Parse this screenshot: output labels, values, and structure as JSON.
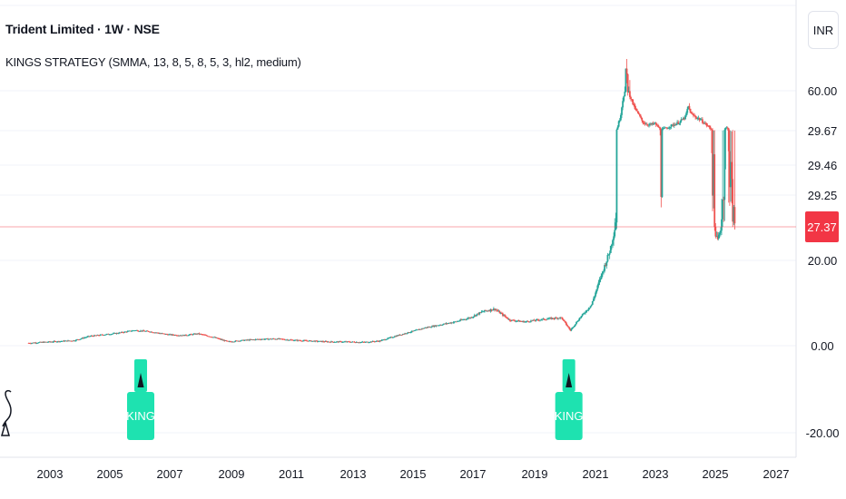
{
  "header": {
    "title": "Trident Limited · 1W · NSE",
    "indicator": "KINGS STRATEGY (SMMA, 13, 8, 5, 8, 5, 3, hl2, medium)",
    "currency": "INR"
  },
  "colors": {
    "up": "#26a69a",
    "down": "#ef5350",
    "signal": "#1ee2b0",
    "last_price_bg": "#f23645",
    "grid": "#f0f3fa",
    "axis_text": "#131722"
  },
  "chart_data": {
    "type": "candlestick",
    "symbol": "Trident Limited",
    "interval": "1W",
    "exchange": "NSE",
    "x_ticks": [
      "2003",
      "2005",
      "2007",
      "2009",
      "2011",
      "2013",
      "2015",
      "2017",
      "2019",
      "2021",
      "2023",
      "2025",
      "2027"
    ],
    "y_ticks": [
      "60.00",
      "29.67",
      "29.46",
      "29.25",
      "20.00",
      "0.00",
      "-20.00"
    ],
    "last_price": "27.37",
    "price_path": [
      [
        2002.3,
        0.6
      ],
      [
        2003.0,
        0.9
      ],
      [
        2003.8,
        1.2
      ],
      [
        2004.3,
        2.2
      ],
      [
        2004.8,
        2.6
      ],
      [
        2005.2,
        2.9
      ],
      [
        2005.8,
        3.6
      ],
      [
        2006.3,
        3.3
      ],
      [
        2006.9,
        2.6
      ],
      [
        2007.4,
        2.4
      ],
      [
        2007.9,
        2.8
      ],
      [
        2008.4,
        2.0
      ],
      [
        2008.9,
        0.9
      ],
      [
        2009.3,
        1.2
      ],
      [
        2009.9,
        1.5
      ],
      [
        2010.5,
        1.6
      ],
      [
        2011.0,
        1.3
      ],
      [
        2011.6,
        1.1
      ],
      [
        2012.2,
        0.9
      ],
      [
        2012.8,
        0.9
      ],
      [
        2013.4,
        0.8
      ],
      [
        2013.9,
        1.1
      ],
      [
        2014.4,
        2.2
      ],
      [
        2014.9,
        3.2
      ],
      [
        2015.4,
        4.2
      ],
      [
        2015.9,
        4.9
      ],
      [
        2016.4,
        5.6
      ],
      [
        2016.9,
        6.6
      ],
      [
        2017.3,
        8.0
      ],
      [
        2017.7,
        8.6
      ],
      [
        2018.2,
        6.0
      ],
      [
        2018.7,
        5.6
      ],
      [
        2019.2,
        6.1
      ],
      [
        2019.6,
        6.4
      ],
      [
        2019.9,
        6.6
      ],
      [
        2020.2,
        3.6
      ],
      [
        2020.5,
        6.4
      ],
      [
        2020.9,
        9.6
      ],
      [
        2021.2,
        16.0
      ],
      [
        2021.5,
        22.0
      ],
      [
        2021.7,
        28.0
      ],
      [
        2021.85,
        40.0
      ],
      [
        2021.95,
        56.0
      ],
      [
        2022.05,
        62.0
      ],
      [
        2022.15,
        58.0
      ],
      [
        2022.3,
        48.0
      ],
      [
        2022.45,
        42.0
      ],
      [
        2022.6,
        36.0
      ],
      [
        2022.8,
        34.0
      ],
      [
        2023.0,
        35.0
      ],
      [
        2023.2,
        30.0
      ],
      [
        2023.4,
        32.0
      ],
      [
        2023.6,
        34.0
      ],
      [
        2023.8,
        36.0
      ],
      [
        2024.0,
        40.0
      ],
      [
        2024.1,
        48.0
      ],
      [
        2024.2,
        42.0
      ],
      [
        2024.35,
        40.0
      ],
      [
        2024.5,
        38.0
      ],
      [
        2024.7,
        34.0
      ],
      [
        2024.9,
        30.0
      ],
      [
        2025.05,
        24.0
      ],
      [
        2025.2,
        28.0
      ],
      [
        2025.35,
        32.0
      ],
      [
        2025.5,
        29.0
      ],
      [
        2025.65,
        27.4
      ]
    ],
    "signals": [
      {
        "year": 2006.0,
        "label": "KING"
      },
      {
        "year": 2020.15,
        "label": "KING"
      }
    ],
    "grid": true,
    "y_axis_position": "right"
  }
}
